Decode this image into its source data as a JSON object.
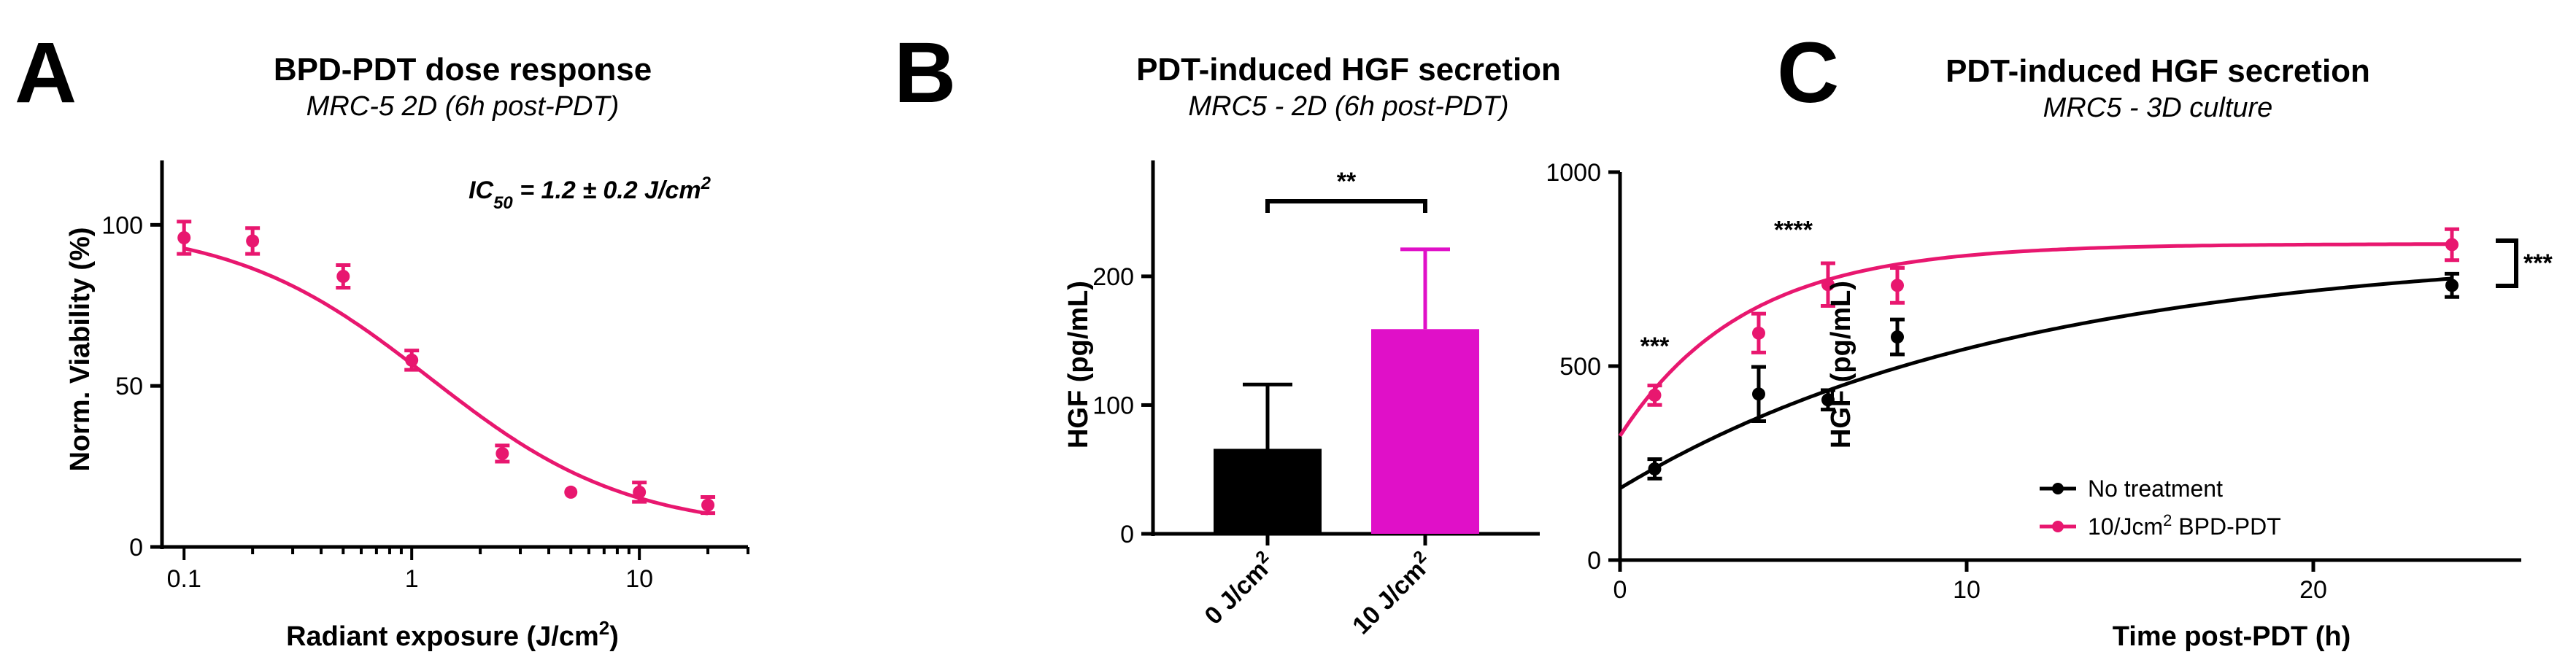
{
  "chart_data": [
    {
      "panel": "A",
      "type": "scatter",
      "title": "BPD-PDT dose response",
      "subtitle": "MRC-5 2D (6h post-PDT)",
      "xlabel": "Radiant exposure (J/cm",
      "xlabel_sup": "2",
      "xlabel_end": ")",
      "ylabel": "Norm. Viability (%)",
      "xscale": "log",
      "xlim": [
        0.08,
        30
      ],
      "ylim": [
        0,
        120
      ],
      "xticks": [
        {
          "v": 0.1,
          "label": "0.1"
        },
        {
          "v": 1,
          "label": "1"
        },
        {
          "v": 10,
          "label": "10"
        }
      ],
      "yticks": [
        {
          "v": 0,
          "label": "0"
        },
        {
          "v": 50,
          "label": "50"
        },
        {
          "v": 100,
          "label": "100"
        }
      ],
      "annotation": {
        "pre": "IC",
        "sub": "50",
        "post": " = 1.2 ± 0.2 J/cm",
        "sup": "2"
      },
      "color": "#e8176f",
      "points": [
        {
          "x": 0.1,
          "y": 96,
          "err": 5
        },
        {
          "x": 0.2,
          "y": 95,
          "err": 4
        },
        {
          "x": 0.5,
          "y": 84,
          "err": 3.5
        },
        {
          "x": 1,
          "y": 58,
          "err": 3
        },
        {
          "x": 2.5,
          "y": 29,
          "err": 2.5
        },
        {
          "x": 5,
          "y": 17,
          "err": 0
        },
        {
          "x": 10,
          "y": 17,
          "err": 3
        },
        {
          "x": 20,
          "y": 13,
          "err": 2.5
        }
      ],
      "fit": {
        "model": "sigmoid",
        "top": 100,
        "bottom": 5,
        "ic50": 1.2,
        "hill": 1
      }
    },
    {
      "panel": "B",
      "type": "bar",
      "title": "PDT-induced HGF secretion",
      "subtitle": "MRC5 - 2D (6h post-PDT)",
      "ylabel": "HGF (pg/mL)",
      "ylim": [
        0,
        290
      ],
      "yticks": [
        {
          "v": 0,
          "label": "0"
        },
        {
          "v": 100,
          "label": "100"
        },
        {
          "v": 200,
          "label": "200"
        }
      ],
      "categories": [
        "0 J/cm",
        "10 J/cm"
      ],
      "category_sup": "2",
      "values": [
        66,
        159
      ],
      "errors": [
        50,
        62
      ],
      "colors": [
        "#000000",
        "#e010c8"
      ],
      "significance": "**"
    },
    {
      "panel": "C",
      "type": "line",
      "title": "PDT-induced HGF secretion",
      "subtitle": "MRC5 - 3D culture",
      "xlabel": "Time post-PDT (h)",
      "ylabel": "HGF (pg/mL)",
      "xlim": [
        0,
        26
      ],
      "ylim": [
        0,
        1000
      ],
      "xticks": [
        {
          "v": 0,
          "label": "0"
        },
        {
          "v": 10,
          "label": "10"
        },
        {
          "v": 20,
          "label": "20"
        }
      ],
      "yticks": [
        {
          "v": 0,
          "label": "0"
        },
        {
          "v": 500,
          "label": "500"
        },
        {
          "v": 1000,
          "label": "1000"
        }
      ],
      "legend_position": "lower-right",
      "series": [
        {
          "name": "No treatment",
          "color": "#000000",
          "points": [
            {
              "x": 1,
              "y": 235,
              "err": 25
            },
            {
              "x": 4,
              "y": 428,
              "err": 70
            },
            {
              "x": 6,
              "y": 413,
              "err": 25
            },
            {
              "x": 8,
              "y": 575,
              "err": 45
            },
            {
              "x": 24,
              "y": 708,
              "err": 30
            }
          ],
          "fit": {
            "y0": 185,
            "plateau": 800,
            "k": 0.088
          }
        },
        {
          "name": "10/Jcm",
          "name_sup": "2",
          "name_end": " BPD-PDT",
          "color": "#e8176f",
          "points": [
            {
              "x": 1,
              "y": 425,
              "err": 25
            },
            {
              "x": 4,
              "y": 585,
              "err": 50
            },
            {
              "x": 6,
              "y": 710,
              "err": 55
            },
            {
              "x": 8,
              "y": 708,
              "err": 45
            },
            {
              "x": 24,
              "y": 813,
              "err": 40
            }
          ],
          "fit": {
            "y0": 320,
            "plateau": 815,
            "k": 0.28
          }
        }
      ],
      "annotations": [
        {
          "x": 1,
          "y": 530,
          "label": "***"
        },
        {
          "x": 5,
          "y": 830,
          "label": "****"
        }
      ],
      "side_significance": "***"
    }
  ]
}
